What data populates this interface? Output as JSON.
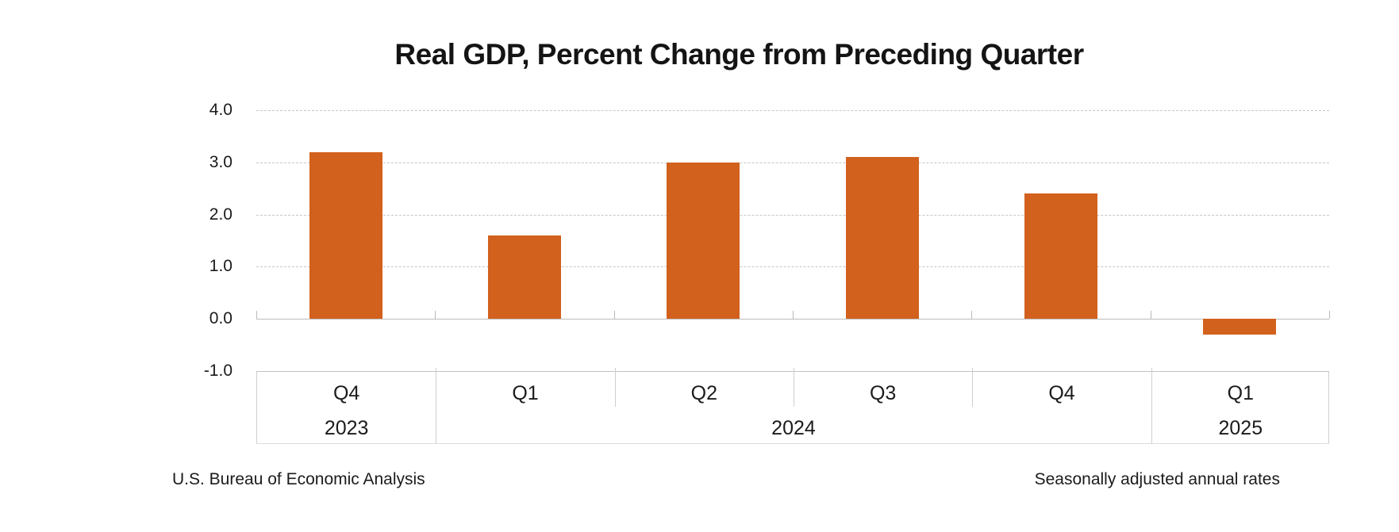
{
  "chart_data": {
    "type": "bar",
    "title": "Real GDP, Percent Change from Preceding Quarter",
    "categories": [
      "Q4",
      "Q1",
      "Q2",
      "Q3",
      "Q4",
      "Q1"
    ],
    "values": [
      3.2,
      1.6,
      3.0,
      3.1,
      2.4,
      -0.3
    ],
    "year_groups": [
      {
        "label": "2023",
        "start": 0,
        "end": 0
      },
      {
        "label": "2024",
        "start": 1,
        "end": 4
      },
      {
        "label": "2025",
        "start": 5,
        "end": 5
      }
    ],
    "y_ticks": [
      {
        "label": "4.0",
        "value": 4.0
      },
      {
        "label": "3.0",
        "value": 3.0
      },
      {
        "label": "2.0",
        "value": 2.0
      },
      {
        "label": "1.0",
        "value": 1.0
      },
      {
        "label": "0.0",
        "value": 0.0
      },
      {
        "label": "-1.0",
        "value": -1.0
      }
    ],
    "ylim": [
      -1.0,
      4.0
    ],
    "xlabel": "",
    "ylabel": "",
    "bar_color": "#d2611e",
    "grid": "horizontal-dashed",
    "legend": "none",
    "source_note": "U.S. Bureau of Economic Analysis",
    "rates_note": "Seasonally adjusted annual rates"
  }
}
